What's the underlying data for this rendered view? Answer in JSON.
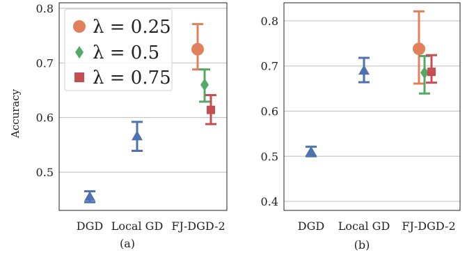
{
  "colors": {
    "lambda_025": "#E1815C",
    "lambda_05": "#55A868",
    "lambda_075": "#C44E52",
    "baseline": "#4C72B0",
    "grid": "#bdbdbd"
  },
  "chart_data": [
    {
      "type": "scatter",
      "panel_label": "(a)",
      "ylabel": "Accuracy",
      "categories": [
        "DGD",
        "Local GD",
        "FJ-DGD-2"
      ],
      "ylim": [
        0.43,
        0.81
      ],
      "yticks": [
        0.5,
        0.6,
        0.7,
        0.8
      ],
      "yticklabels": [
        "0.5",
        "0.6",
        "0.7",
        "0.8"
      ],
      "grid": true,
      "legend_position": "top-left",
      "legend": [
        {
          "label": "λ = 0.25",
          "marker": "circle",
          "color": "#E1815C"
        },
        {
          "label": "λ = 0.5",
          "marker": "diamond",
          "color": "#55A868"
        },
        {
          "label": "λ = 0.75",
          "marker": "square",
          "color": "#C44E52"
        }
      ],
      "series": [
        {
          "category": "DGD",
          "marker": "triangle",
          "color": "#4C72B0",
          "value": 0.455,
          "low": 0.445,
          "high": 0.465
        },
        {
          "category": "Local GD",
          "marker": "triangle",
          "color": "#4C72B0",
          "value": 0.566,
          "low": 0.539,
          "high": 0.592
        },
        {
          "category": "FJ-DGD-2",
          "name": "λ = 0.25",
          "marker": "circle",
          "color": "#E1815C",
          "value": 0.725,
          "low": 0.688,
          "high": 0.771
        },
        {
          "category": "FJ-DGD-2",
          "name": "λ = 0.5",
          "marker": "diamond",
          "color": "#55A868",
          "value": 0.66,
          "low": 0.629,
          "high": 0.688
        },
        {
          "category": "FJ-DGD-2",
          "name": "λ = 0.75",
          "marker": "square",
          "color": "#C44E52",
          "value": 0.614,
          "low": 0.588,
          "high": 0.641
        }
      ]
    },
    {
      "type": "scatter",
      "panel_label": "(b)",
      "ylabel": "",
      "categories": [
        "DGD",
        "Local GD",
        "FJ-DGD-2"
      ],
      "ylim": [
        0.38,
        0.84
      ],
      "yticks": [
        0.4,
        0.5,
        0.6,
        0.7,
        0.8
      ],
      "yticklabels": [
        "0.4",
        "0.5",
        "0.6",
        "0.7",
        "0.8"
      ],
      "grid": true,
      "series": [
        {
          "category": "DGD",
          "marker": "triangle",
          "color": "#4C72B0",
          "value": 0.51,
          "low": 0.5,
          "high": 0.521
        },
        {
          "category": "Local GD",
          "marker": "triangle",
          "color": "#4C72B0",
          "value": 0.69,
          "low": 0.664,
          "high": 0.718
        },
        {
          "category": "FJ-DGD-2",
          "name": "λ = 0.25",
          "marker": "circle",
          "color": "#E1815C",
          "value": 0.738,
          "low": 0.661,
          "high": 0.821
        },
        {
          "category": "FJ-DGD-2",
          "name": "λ = 0.5",
          "marker": "diamond",
          "color": "#55A868",
          "value": 0.685,
          "low": 0.639,
          "high": 0.722
        },
        {
          "category": "FJ-DGD-2",
          "name": "λ = 0.75",
          "marker": "square",
          "color": "#C44E52",
          "value": 0.687,
          "low": 0.663,
          "high": 0.724
        }
      ]
    }
  ]
}
